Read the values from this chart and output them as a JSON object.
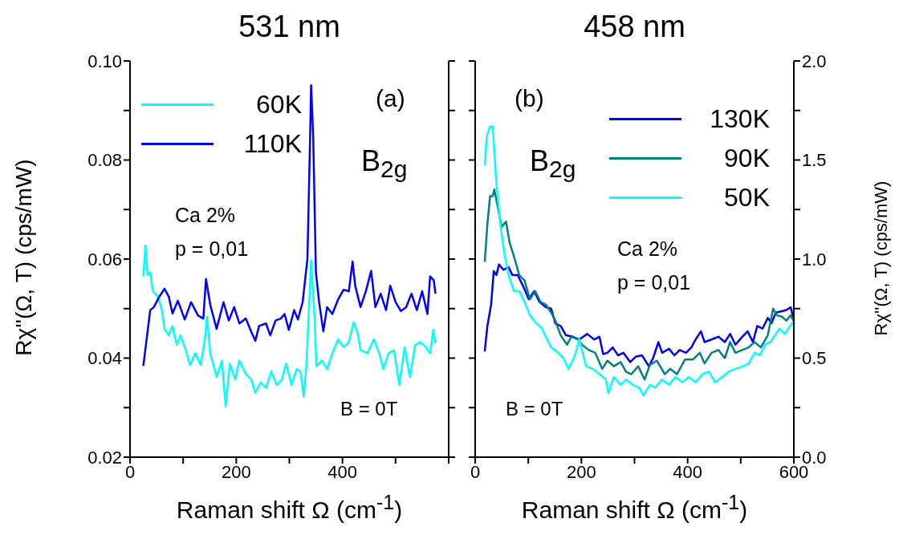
{
  "chart_data": [
    {
      "type": "line",
      "title": "531 nm",
      "xlabel": "Raman shift Ω (cm$^{-1}$)",
      "ylabel": "Rχ''(Ω, T)  (cps/mW)",
      "legend": "top left",
      "xlim": [
        0,
        600
      ],
      "xticks": [
        0,
        {
          "value": 100,
          "label": null
        },
        200,
        {
          "value": 300,
          "label": null
        },
        400,
        {
          "value": 500,
          "label": null
        },
        {
          "value": 600,
          "label": null
        }
      ],
      "ylim": [
        0.02,
        0.1
      ],
      "yticks": [
        0.02,
        {
          "value": 0.03,
          "label": null
        },
        0.04,
        {
          "value": 0.05,
          "label": null
        },
        0.06,
        {
          "value": 0.07,
          "label": null
        },
        0.08,
        {
          "value": 0.09,
          "label": null
        },
        {
          "value": 0.1,
          "label": "0.10"
        }
      ],
      "annotations": [
        "(a)",
        "B$_{2g}$",
        "Ca 2%",
        "p = 0,01",
        "B = 0T"
      ],
      "series": [
        {
          "name": "60K",
          "color": "#00ffff",
          "x": [
            25,
            29,
            33,
            38,
            43,
            53,
            60,
            65,
            73,
            80,
            88,
            95,
            105,
            113,
            123,
            133,
            141,
            145,
            151,
            163,
            173,
            180,
            188,
            198,
            206,
            218,
            228,
            236,
            246,
            256,
            266,
            276,
            286,
            294,
            304,
            314,
            321,
            327,
            332,
            341,
            347,
            351,
            361,
            371,
            381,
            392,
            402,
            412,
            421,
            429,
            434,
            447,
            459,
            469,
            477,
            487,
            497,
            507,
            517,
            527,
            537,
            547,
            557,
            565,
            571,
            575
          ],
          "values": [
            0.0565,
            0.0627,
            0.0568,
            0.0573,
            0.0535,
            0.0524,
            0.0497,
            0.0459,
            0.0446,
            0.0465,
            0.0427,
            0.0446,
            0.0416,
            0.0386,
            0.041,
            0.0386,
            0.0438,
            0.0484,
            0.041,
            0.0362,
            0.0395,
            0.0303,
            0.0389,
            0.0357,
            0.0395,
            0.0368,
            0.0357,
            0.033,
            0.0351,
            0.034,
            0.0373,
            0.0346,
            0.0357,
            0.0389,
            0.0346,
            0.0378,
            0.0373,
            0.0322,
            0.0384,
            0.0597,
            0.0492,
            0.0384,
            0.0395,
            0.0378,
            0.041,
            0.0438,
            0.0422,
            0.0432,
            0.0473,
            0.0449,
            0.0416,
            0.041,
            0.0438,
            0.041,
            0.0378,
            0.041,
            0.0416,
            0.0346,
            0.0422,
            0.0362,
            0.0427,
            0.0432,
            0.0422,
            0.041,
            0.0457,
            0.043
          ]
        },
        {
          "name": "110K",
          "color": "#0000ff",
          "x": [
            25,
            38,
            45,
            55,
            65,
            73,
            80,
            90,
            103,
            115,
            128,
            138,
            143,
            151,
            163,
            176,
            186,
            196,
            206,
            218,
            228,
            236,
            243,
            256,
            264,
            274,
            284,
            291,
            299,
            309,
            316,
            325,
            334,
            339,
            341,
            345,
            350,
            356,
            364,
            371,
            381,
            392,
            402,
            412,
            419,
            424,
            434,
            444,
            454,
            462,
            472,
            482,
            490,
            500,
            510,
            520,
            530,
            540,
            550,
            560,
            565,
            572,
            575
          ],
          "values": [
            0.0384,
            0.0497,
            0.0503,
            0.0524,
            0.054,
            0.0524,
            0.049,
            0.0516,
            0.0478,
            0.0513,
            0.0486,
            0.048,
            0.056,
            0.0508,
            0.0459,
            0.0513,
            0.0476,
            0.0503,
            0.047,
            0.048,
            0.0454,
            0.0435,
            0.0465,
            0.047,
            0.0446,
            0.0476,
            0.048,
            0.0489,
            0.0457,
            0.0497,
            0.0478,
            0.0513,
            0.06,
            0.0843,
            0.0951,
            0.0843,
            0.0573,
            0.0513,
            0.0454,
            0.0503,
            0.0489,
            0.0519,
            0.0538,
            0.0535,
            0.0595,
            0.0546,
            0.0503,
            0.0535,
            0.0576,
            0.0503,
            0.053,
            0.0497,
            0.0546,
            0.0513,
            0.0495,
            0.0503,
            0.053,
            0.0497,
            0.0535,
            0.0489,
            0.0565,
            0.0557,
            0.053
          ]
        }
      ]
    },
    {
      "type": "line",
      "title": "458 nm",
      "xlabel": "Raman shift Ω (cm$^{-1}$)",
      "y2label": "Rχ''(Ω, T)  (cps/mW)",
      "legend": "top right",
      "xlim": [
        0,
        600
      ],
      "xticks": [
        0,
        {
          "value": 100,
          "label": null
        },
        200,
        {
          "value": 300,
          "label": null
        },
        400,
        {
          "value": 500,
          "label": null
        },
        600
      ],
      "y2lim": [
        0,
        2
      ],
      "y2ticks": [
        {
          "value": 0,
          "label": "0.0"
        },
        {
          "value": 0.25,
          "label": null
        },
        0.5,
        {
          "value": 0.75,
          "label": null
        },
        {
          "value": 1,
          "label": "1.0"
        },
        {
          "value": 1.25,
          "label": null
        },
        1.5,
        {
          "value": 1.75,
          "label": null
        },
        {
          "value": 2,
          "label": "2.0"
        }
      ],
      "annotations": [
        "(b)",
        "B$_{2g}$",
        "Ca 2%",
        "p = 0,01",
        "B = 0T"
      ],
      "series": [
        {
          "name": "130K",
          "color": "#0000ee",
          "axis": "y2",
          "x": [
            18,
            23,
            30,
            35,
            40,
            45,
            53,
            63,
            70,
            80,
            90,
            101,
            111,
            121,
            133,
            143,
            151,
            161,
            171,
            184,
            196,
            211,
            224,
            234,
            241,
            249,
            259,
            269,
            279,
            292,
            302,
            314,
            327,
            335,
            345,
            352,
            365,
            375,
            385,
            397,
            407,
            415,
            425,
            432,
            445,
            458,
            470,
            480,
            490,
            503,
            513,
            523,
            531,
            541,
            551,
            558,
            566,
            576,
            586,
            594,
            599
          ],
          "values": [
            0.534,
            0.662,
            0.77,
            0.939,
            0.919,
            0.973,
            0.946,
            0.959,
            0.919,
            0.919,
            0.865,
            0.797,
            0.838,
            0.784,
            0.757,
            0.75,
            0.676,
            0.662,
            0.615,
            0.608,
            0.594,
            0.622,
            0.594,
            0.608,
            0.52,
            0.527,
            0.554,
            0.514,
            0.527,
            0.48,
            0.507,
            0.514,
            0.459,
            0.5,
            0.581,
            0.527,
            0.547,
            0.514,
            0.541,
            0.527,
            0.554,
            0.594,
            0.635,
            0.581,
            0.594,
            0.608,
            0.581,
            0.622,
            0.568,
            0.608,
            0.635,
            0.581,
            0.662,
            0.649,
            0.703,
            0.676,
            0.73,
            0.736,
            0.743,
            0.757,
            0.703
          ]
        },
        {
          "name": "90K",
          "color": "#008080",
          "axis": "y2",
          "x": [
            18,
            23,
            28,
            33,
            36,
            43,
            50,
            58,
            65,
            73,
            83,
            93,
            103,
            113,
            123,
            133,
            143,
            151,
            161,
            173,
            181,
            194,
            201,
            214,
            226,
            239,
            249,
            261,
            274,
            284,
            294,
            307,
            319,
            329,
            342,
            357,
            367,
            380,
            395,
            410,
            423,
            432,
            445,
            458,
            470,
            480,
            490,
            503,
            515,
            526,
            538,
            551,
            561,
            568,
            578,
            586,
            594,
            599
          ],
          "values": [
            0.986,
            1.176,
            1.318,
            1.318,
            1.351,
            1.257,
            1.162,
            1.189,
            1.081,
            1.014,
            0.919,
            0.892,
            0.797,
            0.838,
            0.784,
            0.77,
            0.73,
            0.689,
            0.615,
            0.568,
            0.608,
            0.594,
            0.568,
            0.541,
            0.527,
            0.446,
            0.487,
            0.459,
            0.48,
            0.432,
            0.419,
            0.459,
            0.392,
            0.466,
            0.487,
            0.419,
            0.446,
            0.419,
            0.493,
            0.493,
            0.527,
            0.473,
            0.527,
            0.541,
            0.5,
            0.581,
            0.527,
            0.541,
            0.554,
            0.581,
            0.554,
            0.615,
            0.75,
            0.716,
            0.709,
            0.689,
            0.716,
            0.689
          ]
        },
        {
          "name": "50K",
          "color": "#00ffff",
          "axis": "y2",
          "x": [
            18,
            22,
            28,
            33,
            40,
            48,
            55,
            63,
            73,
            83,
            93,
            103,
            113,
            126,
            133,
            143,
            156,
            166,
            176,
            188,
            196,
            209,
            221,
            234,
            246,
            251,
            261,
            274,
            284,
            297,
            309,
            317,
            329,
            339,
            352,
            365,
            377,
            390,
            402,
            415,
            428,
            440,
            452,
            465,
            478,
            490,
            505,
            515,
            526,
            536,
            546,
            556,
            566,
            573,
            583,
            591,
            599
          ],
          "values": [
            1.473,
            1.622,
            1.669,
            1.669,
            1.378,
            1.162,
            1.027,
            0.919,
            0.838,
            0.838,
            0.784,
            0.716,
            0.682,
            0.649,
            0.608,
            0.554,
            0.527,
            0.5,
            0.446,
            0.514,
            0.594,
            0.459,
            0.446,
            0.419,
            0.392,
            0.324,
            0.405,
            0.365,
            0.392,
            0.365,
            0.351,
            0.311,
            0.365,
            0.351,
            0.392,
            0.365,
            0.405,
            0.378,
            0.405,
            0.378,
            0.419,
            0.432,
            0.378,
            0.405,
            0.432,
            0.446,
            0.459,
            0.473,
            0.527,
            0.514,
            0.568,
            0.581,
            0.622,
            0.649,
            0.622,
            0.655,
            0.682
          ]
        }
      ]
    }
  ]
}
